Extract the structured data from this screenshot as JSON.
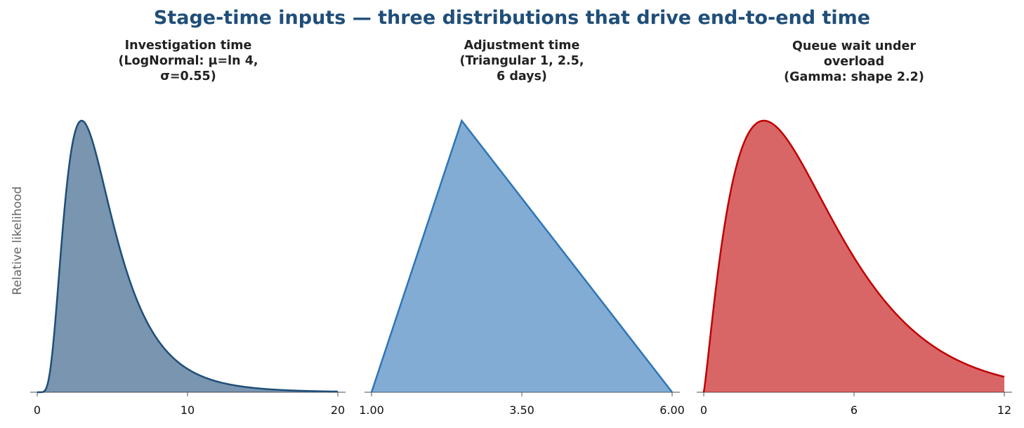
{
  "title": "Stage-time inputs — three distributions that drive end-to-end time",
  "colors": {
    "title": "#1f4e79",
    "lognormal": "#1f4e79",
    "triangular": "#2e75b6",
    "gamma": "#c00000"
  },
  "chart_data": [
    {
      "type": "area",
      "title": "Investigation time\n(LogNormal: μ=ln 4,\nσ=0.55)",
      "ylabel": "Relative likelihood",
      "distribution": {
        "family": "lognormal",
        "mu": 1.3863,
        "sigma": 0.55
      },
      "xlim": [
        0,
        20
      ],
      "xticks": [
        0,
        10,
        20
      ],
      "tick_labels": [
        "0",
        "10",
        "20"
      ],
      "grid": false,
      "color": "#1f4e79"
    },
    {
      "type": "area",
      "title": "Adjustment time\n(Triangular 1, 2.5,\n6 days)",
      "distribution": {
        "family": "triangular",
        "min": 1,
        "mode": 2.5,
        "max": 6
      },
      "xlim": [
        1,
        6
      ],
      "xticks": [
        1,
        3.5,
        6
      ],
      "tick_labels": [
        "1.00",
        "3.50",
        "6.00"
      ],
      "grid": false,
      "color": "#2e75b6"
    },
    {
      "type": "area",
      "title": "Queue wait under\noverload\n(Gamma: shape 2.2)",
      "distribution": {
        "family": "gamma",
        "shape": 2.2,
        "scale": 2.0
      },
      "xlim": [
        0,
        12
      ],
      "xticks": [
        0,
        6,
        12
      ],
      "tick_labels": [
        "0",
        "6",
        "12"
      ],
      "grid": false,
      "color": "#c00000"
    }
  ]
}
